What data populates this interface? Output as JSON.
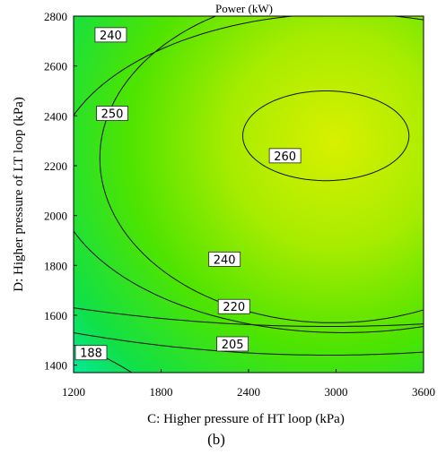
{
  "chart_data": {
    "type": "contour",
    "title": "Power (kW)",
    "xlabel": "C: Higher pressure of HT loop (kPa)",
    "ylabel": "D: Higher pressure of LT loop (kPa)",
    "panel_label": "(b)",
    "xlim": [
      1200,
      3600
    ],
    "ylim": [
      1370,
      2800
    ],
    "xticks": [
      "1200",
      "1800",
      "2400",
      "3000",
      "3600"
    ],
    "yticks": [
      "1400",
      "1600",
      "1800",
      "2000",
      "2200",
      "2400",
      "2600",
      "2800"
    ],
    "peak": {
      "x": 2930,
      "y": 2320
    },
    "contours": [
      {
        "level": "188",
        "label_at": {
          "x": 1320,
          "y": 1450
        }
      },
      {
        "level": "205",
        "label_at": {
          "x": 2290,
          "y": 1485
        }
      },
      {
        "level": "220",
        "label_at": {
          "x": 2300,
          "y": 1635
        }
      },
      {
        "level": "240",
        "label_at": {
          "x": 2235,
          "y": 1825
        }
      },
      {
        "level": "240",
        "label_at": {
          "x": 1455,
          "y": 2725
        }
      },
      {
        "level": "250",
        "label_at": {
          "x": 1465,
          "y": 2410
        }
      },
      {
        "level": "260",
        "label_at": {
          "x": 2650,
          "y": 2240
        }
      }
    ],
    "colormap": {
      "high": "#d4f000",
      "mid": "#22e000",
      "low": "#00f0c8"
    }
  }
}
